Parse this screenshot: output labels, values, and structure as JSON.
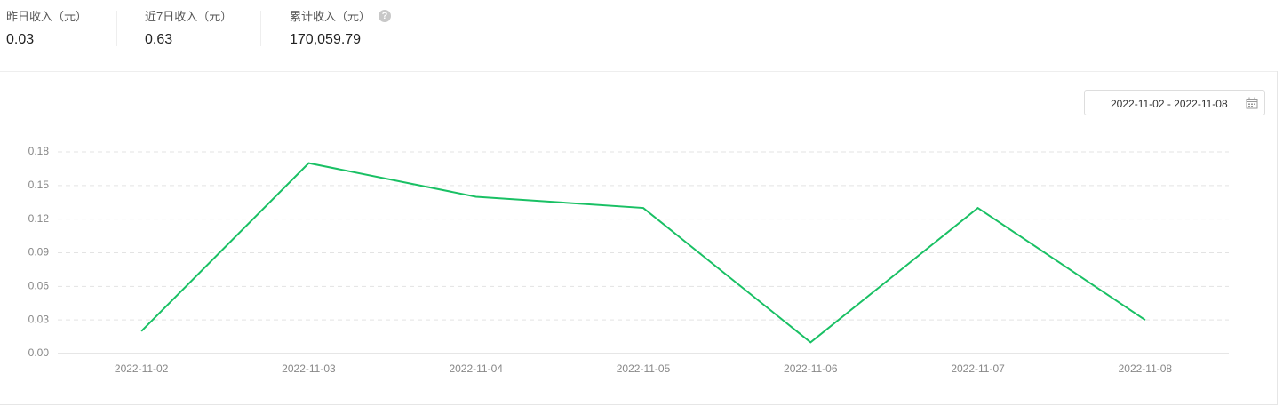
{
  "stats": [
    {
      "label": "昨日收入（元）",
      "value": "0.03"
    },
    {
      "label": "近7日收入（元）",
      "value": "0.63"
    },
    {
      "label": "累计收入（元）",
      "value": "170,059.79"
    }
  ],
  "date_range": "2022-11-02 - 2022-11-08",
  "chart_data": {
    "type": "line",
    "categories": [
      "2022-11-02",
      "2022-11-03",
      "2022-11-04",
      "2022-11-05",
      "2022-11-06",
      "2022-11-07",
      "2022-11-08"
    ],
    "values": [
      0.02,
      0.17,
      0.14,
      0.13,
      0.01,
      0.13,
      0.03
    ],
    "color": "#19c064",
    "ylim": [
      0,
      0.18
    ],
    "yticks": [
      {
        "value": 0,
        "label": "0.00"
      },
      0.03,
      0.06,
      0.09,
      0.12,
      0.15,
      0.18
    ],
    "grid": true
  }
}
